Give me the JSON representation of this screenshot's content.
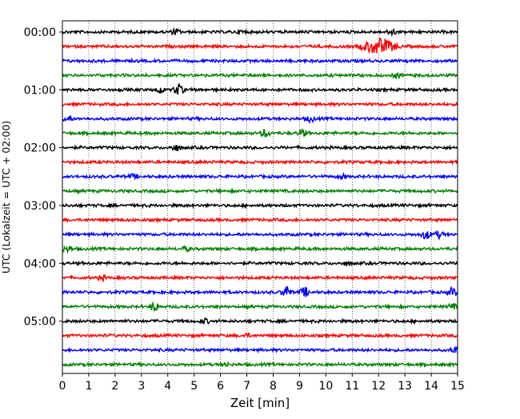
{
  "chart_data": {
    "type": "line",
    "subtype": "helicorder",
    "title": "",
    "xlabel": "Zeit  [min]",
    "ylabel": "UTC (Lokalzeit = UTC + 02:00)",
    "xlim": [
      0,
      15
    ],
    "x_ticks": [
      "0",
      "1",
      "2",
      "3",
      "4",
      "5",
      "6",
      "7",
      "8",
      "9",
      "10",
      "11",
      "12",
      "13",
      "14",
      "15"
    ],
    "y_tick_labels": [
      "00:00",
      "01:00",
      "02:00",
      "03:00",
      "04:00",
      "05:00"
    ],
    "trace_interval_min": 15,
    "trace_count": 24,
    "color_cycle": [
      "#000000",
      "#ff0000",
      "#0000ff",
      "#008000"
    ],
    "grid": "vertical dotted lines at each minute",
    "events": [
      {
        "trace": 0,
        "x": 4.3,
        "amp": 0.7
      },
      {
        "trace": 0,
        "x": 6.8,
        "amp": 0.5
      },
      {
        "trace": 0,
        "x": 12.5,
        "amp": 0.9
      },
      {
        "trace": 1,
        "x": 12.0,
        "amp": 2.4
      },
      {
        "trace": 3,
        "x": 12.7,
        "amp": 0.7
      },
      {
        "trace": 4,
        "x": 4.4,
        "amp": 1.6
      },
      {
        "trace": 4,
        "x": 3.7,
        "amp": 1.0
      },
      {
        "trace": 6,
        "x": 0.2,
        "amp": 0.9
      },
      {
        "trace": 6,
        "x": 9.4,
        "amp": 0.8
      },
      {
        "trace": 7,
        "x": 7.7,
        "amp": 1.2
      },
      {
        "trace": 7,
        "x": 9.1,
        "amp": 1.1
      },
      {
        "trace": 8,
        "x": 4.3,
        "amp": 1.0
      },
      {
        "trace": 10,
        "x": 2.7,
        "amp": 0.6
      },
      {
        "trace": 10,
        "x": 10.6,
        "amp": 0.6
      },
      {
        "trace": 14,
        "x": 13.8,
        "amp": 1.3
      },
      {
        "trace": 14,
        "x": 14.3,
        "amp": 0.9
      },
      {
        "trace": 15,
        "x": 0.2,
        "amp": 0.8
      },
      {
        "trace": 15,
        "x": 4.7,
        "amp": 0.6
      },
      {
        "trace": 16,
        "x": 10.8,
        "amp": 0.5
      },
      {
        "trace": 17,
        "x": 1.5,
        "amp": 0.6
      },
      {
        "trace": 18,
        "x": 8.5,
        "amp": 1.8
      },
      {
        "trace": 18,
        "x": 9.2,
        "amp": 1.4
      },
      {
        "trace": 18,
        "x": 14.8,
        "amp": 1.2
      },
      {
        "trace": 19,
        "x": 3.5,
        "amp": 1.3
      },
      {
        "trace": 19,
        "x": 14.8,
        "amp": 0.8
      },
      {
        "trace": 20,
        "x": 5.4,
        "amp": 0.6
      },
      {
        "trace": 21,
        "x": 7.0,
        "amp": 0.5
      },
      {
        "trace": 22,
        "x": 14.9,
        "amp": 0.9
      },
      {
        "trace": 23,
        "x": 6.2,
        "amp": 0.5
      }
    ]
  }
}
